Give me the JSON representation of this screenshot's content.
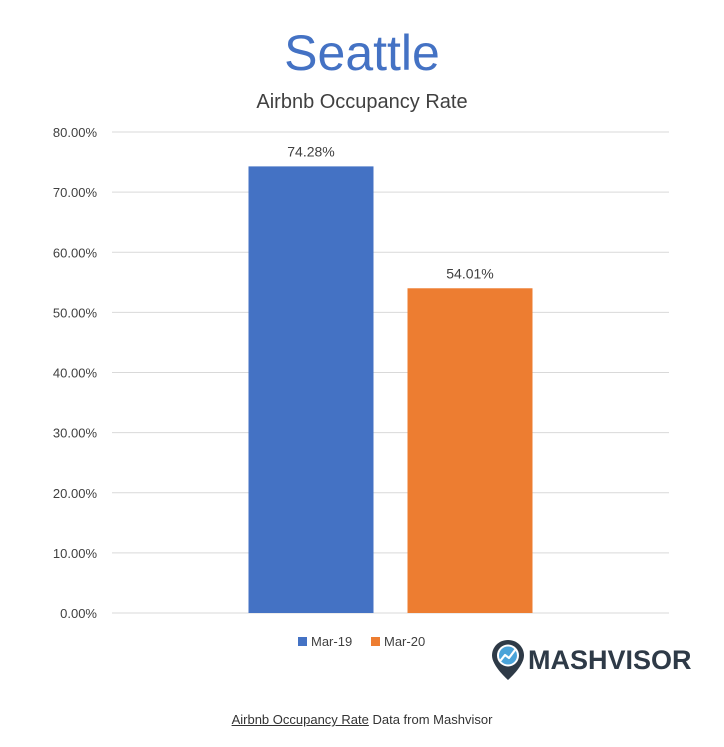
{
  "chart_data": {
    "type": "bar",
    "title": "Seattle",
    "subtitle": "Airbnb Occupancy Rate",
    "categories": [
      ""
    ],
    "series": [
      {
        "name": "Mar-19",
        "values": [
          74.28
        ],
        "label": "74.28%",
        "color": "#4472c4"
      },
      {
        "name": "Mar-20",
        "values": [
          54.01
        ],
        "label": "54.01%",
        "color": "#ed7d31"
      }
    ],
    "ylim": [
      0,
      80
    ],
    "yticks": [
      0,
      10,
      20,
      30,
      40,
      50,
      60,
      70,
      80
    ],
    "ytick_labels": [
      "0.00%",
      "10.00%",
      "20.00%",
      "30.00%",
      "40.00%",
      "50.00%",
      "60.00%",
      "70.00%",
      "80.00%"
    ],
    "grid": true,
    "legend": "bottom",
    "title_color": "#4472c4",
    "gridline_color": "#d9d9d9"
  },
  "logo": {
    "text": "MASHVISOR",
    "icon": "map-pin-chart-icon"
  },
  "caption": {
    "link_text": "Airbnb Occupancy Rate",
    "rest_text": " Data from Mashvisor"
  }
}
